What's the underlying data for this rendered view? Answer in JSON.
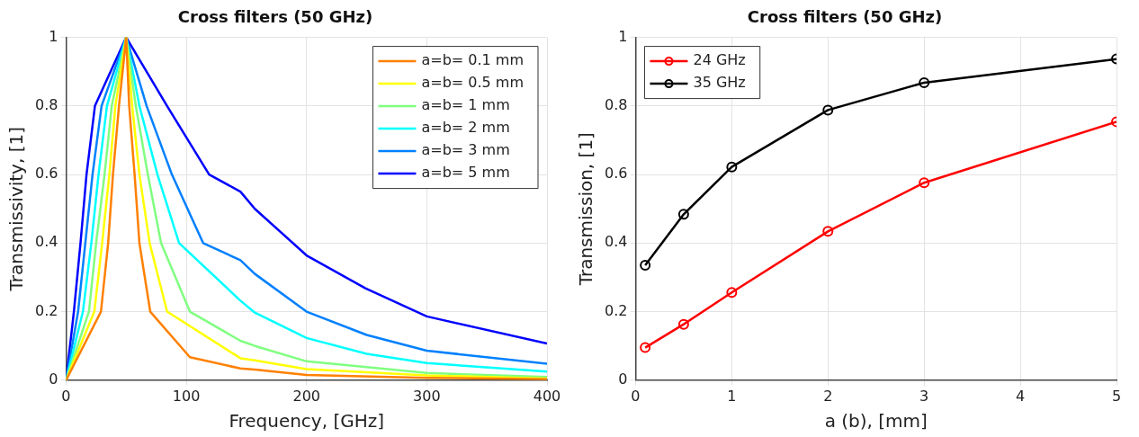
{
  "chart_data": [
    {
      "type": "line",
      "title": "Cross filters (50 GHz)",
      "xlabel": "Frequency, [GHz]",
      "ylabel": "Transmissivity, [1]",
      "xlim": [
        0,
        400
      ],
      "xticks": [
        0,
        100,
        200,
        300,
        400
      ],
      "ylim": [
        0,
        1
      ],
      "yticks": [
        0,
        0.2,
        0.4,
        0.6,
        0.8,
        1
      ],
      "grid": true,
      "legend": "top right",
      "marker": "none",
      "line_style": "solid",
      "series": [
        {
          "name": "a=b= 0.1 mm",
          "color": "#ff8000",
          "x": [
            0,
            29,
            35,
            39,
            44,
            50,
            52.5,
            57,
            61,
            70,
            103,
            145,
            157,
            200,
            300,
            400
          ],
          "values": [
            0,
            0.2,
            0.4,
            0.6,
            0.8,
            1,
            0.8,
            0.6,
            0.4,
            0.2,
            0.067,
            0.034,
            0.031,
            0.015,
            0.007,
            0.003
          ]
        },
        {
          "name": "a=b= 0.5 mm",
          "color": "#ffff00",
          "x": [
            0,
            23.5,
            30,
            36,
            41,
            50,
            55,
            61,
            69.5,
            84,
            145,
            157,
            200,
            300,
            400
          ],
          "values": [
            0,
            0.2,
            0.4,
            0.6,
            0.8,
            1,
            0.8,
            0.6,
            0.4,
            0.2,
            0.064,
            0.058,
            0.032,
            0.014,
            0.005
          ]
        },
        {
          "name": "a=b= 1 mm",
          "color": "#80ff80",
          "x": [
            0,
            19,
            25,
            32,
            38,
            50,
            58,
            68,
            79,
            103,
            145,
            157,
            200,
            300,
            400
          ],
          "values": [
            0,
            0.2,
            0.4,
            0.6,
            0.8,
            1,
            0.8,
            0.6,
            0.4,
            0.2,
            0.115,
            0.1,
            0.055,
            0.021,
            0.009
          ]
        },
        {
          "name": "a=b= 2 mm",
          "color": "#00ffff",
          "x": [
            0,
            14,
            21,
            27,
            34,
            50,
            61,
            76,
            94,
            145,
            157,
            200,
            250,
            300,
            400
          ],
          "values": [
            0,
            0.2,
            0.4,
            0.6,
            0.8,
            1,
            0.8,
            0.6,
            0.4,
            0.232,
            0.197,
            0.123,
            0.077,
            0.05,
            0.025
          ]
        },
        {
          "name": "a=b= 3 mm",
          "color": "#0080ff",
          "x": [
            0,
            10,
            16,
            22,
            29.5,
            50,
            67,
            88,
            114,
            145,
            157,
            200,
            250,
            300,
            400
          ],
          "values": [
            0,
            0.2,
            0.4,
            0.6,
            0.8,
            1,
            0.8,
            0.6,
            0.4,
            0.35,
            0.31,
            0.2,
            0.132,
            0.086,
            0.048
          ]
        },
        {
          "name": "a=b= 5 mm",
          "color": "#0000ff",
          "x": [
            0,
            6.5,
            12,
            17,
            24,
            50,
            84,
            119,
            145,
            157,
            200,
            249,
            300,
            400
          ],
          "values": [
            0,
            0.2,
            0.4,
            0.6,
            0.8,
            1,
            0.8,
            0.6,
            0.55,
            0.5,
            0.364,
            0.268,
            0.186,
            0.107
          ]
        }
      ]
    },
    {
      "type": "line",
      "title": "Cross filters (50 GHz)",
      "xlabel": "a (b), [mm]",
      "ylabel": "Transmission, [1]",
      "xlim": [
        0,
        5
      ],
      "xticks": [
        0,
        1,
        2,
        3,
        4,
        5
      ],
      "ylim": [
        0,
        1
      ],
      "yticks": [
        0,
        0.2,
        0.4,
        0.6,
        0.8,
        1
      ],
      "grid": true,
      "legend": "top left",
      "marker": "circle",
      "line_style": "solid",
      "x": [
        0.1,
        0.5,
        1,
        2,
        3,
        5
      ],
      "series": [
        {
          "name": "24 GHz",
          "color": "#ff0000",
          "values": [
            0.095,
            0.163,
            0.256,
            0.434,
            0.576,
            0.754
          ]
        },
        {
          "name": "35 GHz",
          "color": "#000000",
          "values": [
            0.335,
            0.484,
            0.622,
            0.788,
            0.868,
            0.937
          ]
        }
      ]
    }
  ]
}
